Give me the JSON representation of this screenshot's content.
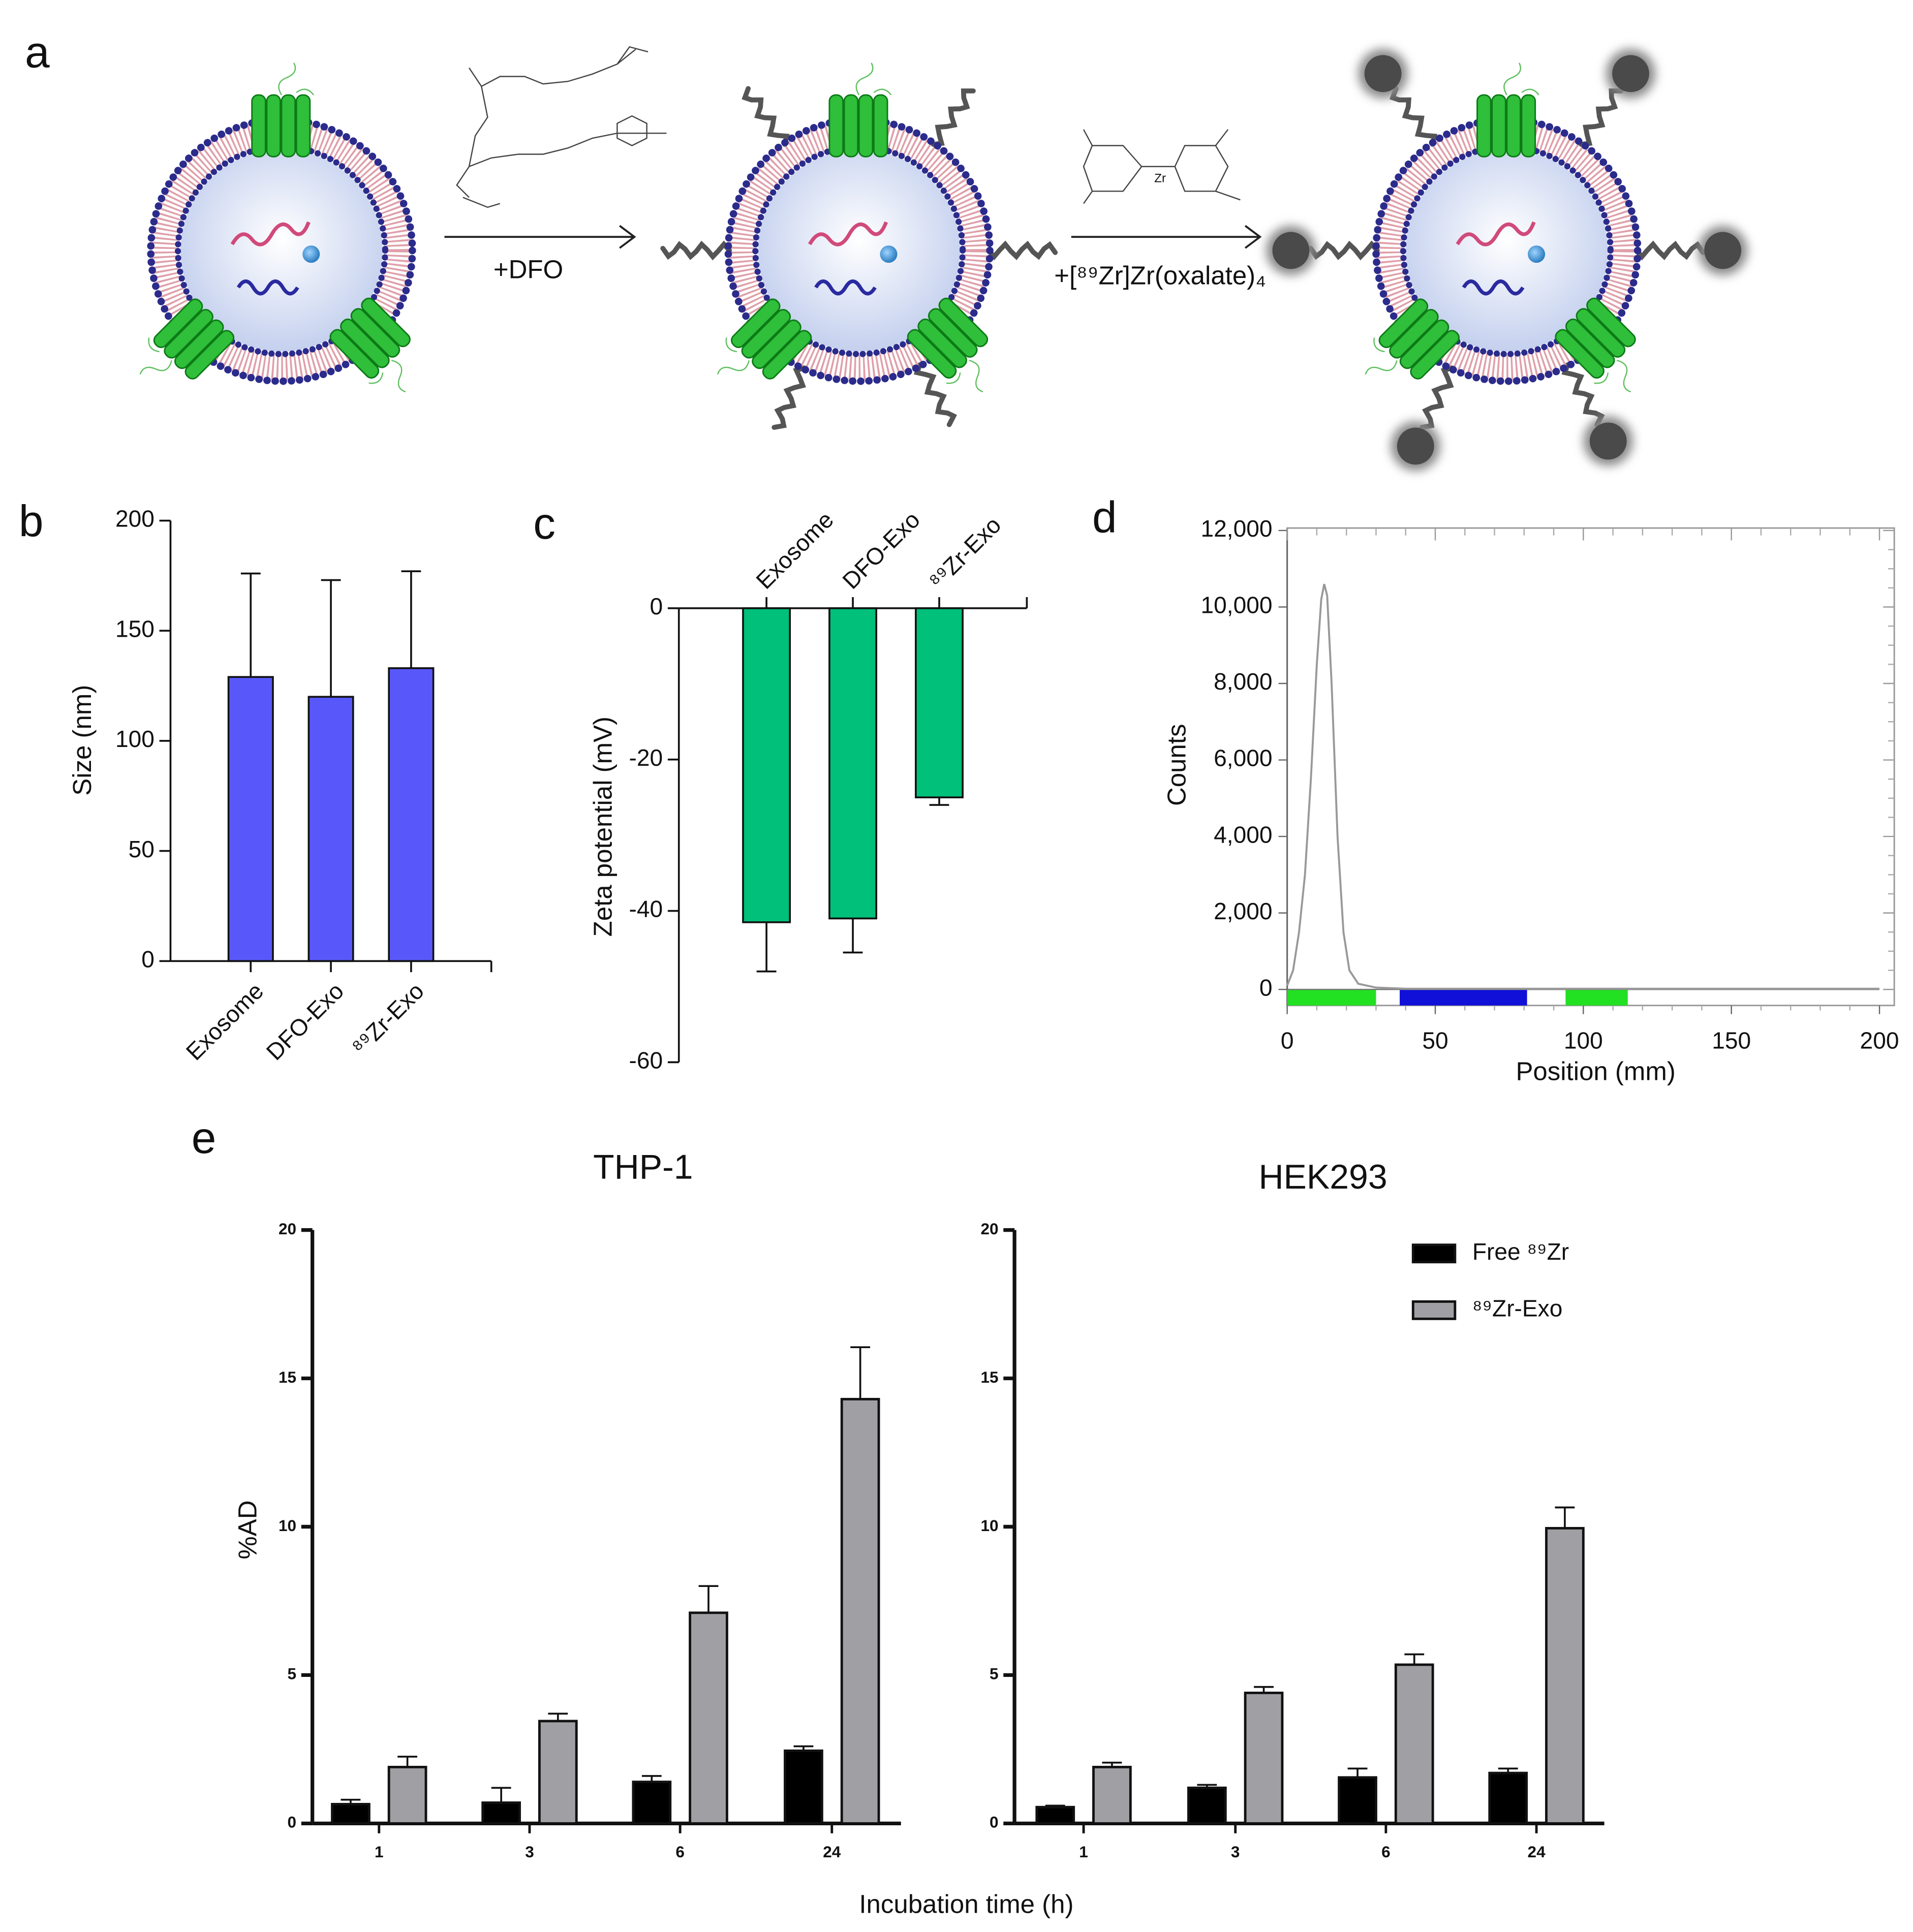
{
  "scheme": {
    "panel": "a",
    "step1": "+DFO",
    "step2": "+[⁸⁹Zr]Zr(oxalate)₄",
    "metal": "Zr"
  },
  "chart_data": [
    {
      "type": "bar",
      "panel": "b",
      "ylabel": "Size (nm)",
      "categories": [
        "Exosome",
        "DFO-Exo",
        "⁸⁹Zr-Exo"
      ],
      "values": [
        129,
        120,
        133
      ],
      "errors": [
        47,
        53,
        44
      ],
      "color": "#5858fa",
      "ylim": [
        0,
        200
      ],
      "yticks": [
        0,
        50,
        100,
        150,
        200
      ]
    },
    {
      "type": "bar",
      "panel": "c",
      "ylabel": "Zeta potential (mV)",
      "categories": [
        "Exosome",
        "DFO-Exo",
        "⁸⁹Zr-Exo"
      ],
      "values": [
        -41.5,
        -41,
        -25
      ],
      "errors": [
        6.5,
        4.5,
        1
      ],
      "color": "#00c07a",
      "ylim": [
        -60,
        0
      ],
      "yticks": [
        -60,
        -40,
        -20,
        0
      ]
    },
    {
      "type": "line",
      "panel": "d",
      "xlabel": "Position (mm)",
      "ylabel": "Counts",
      "color": "#999999",
      "x": [
        0,
        2,
        4,
        6,
        8,
        10,
        11.5,
        12.5,
        13.5,
        15,
        17,
        19,
        21,
        24,
        30,
        40,
        200
      ],
      "y": [
        100,
        500,
        1500,
        3000,
        5500,
        8500,
        10200,
        10600,
        10300,
        8000,
        4000,
        1500,
        500,
        150,
        50,
        20,
        20
      ],
      "regions": [
        {
          "start": 0,
          "end": 30,
          "color": "#22e022"
        },
        {
          "start": 38,
          "end": 81,
          "color": "#1010d8"
        },
        {
          "start": 94,
          "end": 115,
          "color": "#22e022"
        }
      ],
      "xlim": [
        0,
        200
      ],
      "xticks": [
        0,
        50,
        100,
        150,
        200
      ],
      "ylim": [
        0,
        12000
      ],
      "yticks": [
        0,
        {
          "value": 2000,
          "label": "2,000"
        },
        {
          "value": 4000,
          "label": "4,000"
        },
        {
          "value": 6000,
          "label": "6,000"
        },
        {
          "value": 8000,
          "label": "8,000"
        },
        {
          "value": 10000,
          "label": "10,000"
        },
        {
          "value": 12000,
          "label": "12,000"
        }
      ]
    },
    {
      "type": "bar",
      "panel": "e",
      "titles": [
        "THP-1",
        "HEK293"
      ],
      "ylabel": "%AD",
      "xlabel": "Incubation time (h)",
      "categories": [
        "1",
        "3",
        "6",
        "24"
      ],
      "series": [
        {
          "name": "Free ⁸⁹Zr",
          "color": "#000000",
          "values": [
            [
              0.65,
              0.7,
              1.4,
              2.45
            ],
            [
              0.55,
              1.2,
              1.55,
              1.7
            ]
          ],
          "errors": [
            [
              0.15,
              0.5,
              0.2,
              0.15
            ],
            [
              0.05,
              0.1,
              0.3,
              0.15
            ]
          ]
        },
        {
          "name": "⁸⁹Zr-Exo",
          "color": "#a0a0a4",
          "values": [
            [
              1.9,
              3.45,
              7.1,
              14.3
            ],
            [
              1.9,
              4.4,
              5.35,
              9.95
            ]
          ],
          "errors": [
            [
              0.35,
              0.25,
              0.9,
              1.75
            ],
            [
              0.15,
              0.2,
              0.35,
              0.7
            ]
          ]
        }
      ],
      "ylim": [
        0,
        20
      ],
      "yticks": [
        0,
        5,
        10,
        15,
        20
      ]
    }
  ]
}
